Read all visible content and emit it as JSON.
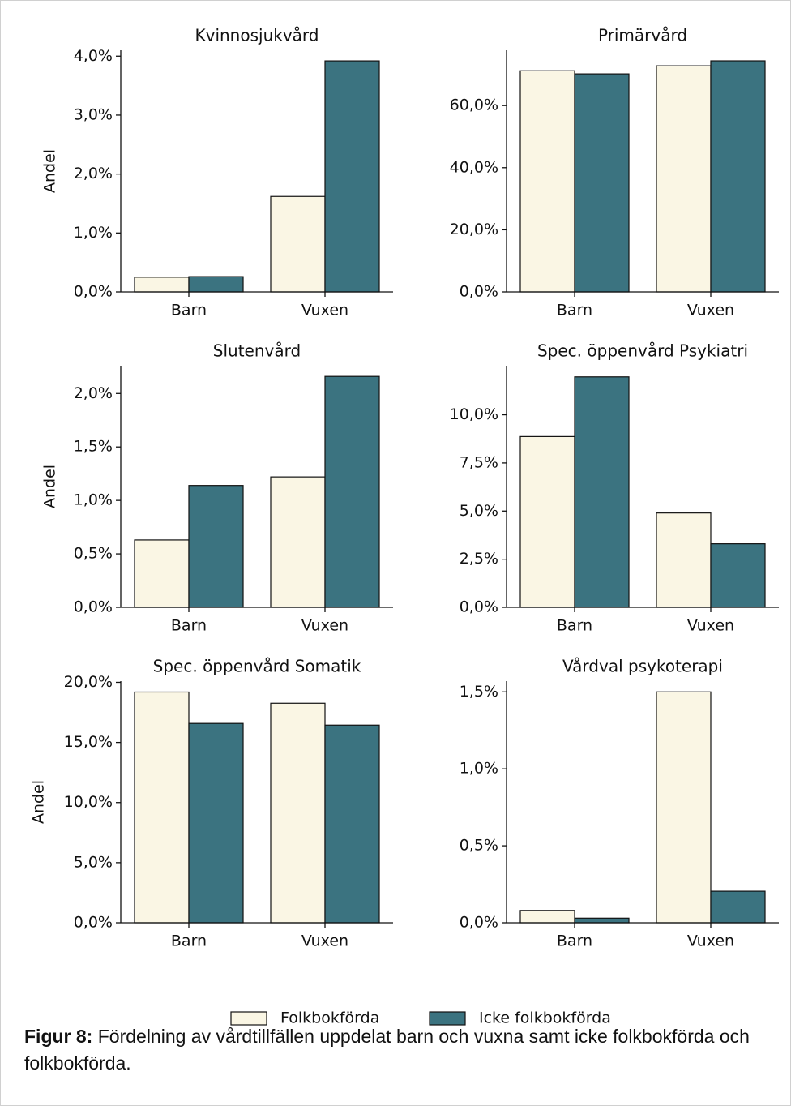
{
  "chart_data": [
    {
      "type": "bar",
      "title": "Kvinnosjukvård",
      "ylabel": "Andel",
      "categories": [
        "Barn",
        "Vuxen"
      ],
      "series": [
        {
          "name": "Folkbokförda",
          "color": "#faf6e4",
          "values": [
            0.25,
            1.62
          ]
        },
        {
          "name": "Icke folkbokförda",
          "color": "#3b7380",
          "values": [
            0.26,
            3.92
          ]
        }
      ],
      "ylim": [
        0,
        4.1
      ],
      "yticks": [
        {
          "value": 0,
          "label": "0,0%"
        },
        {
          "value": 1,
          "label": "1,0%"
        },
        {
          "value": 2,
          "label": "2,0%"
        },
        {
          "value": 3,
          "label": "3,0%"
        },
        {
          "value": 4,
          "label": "4,0%"
        }
      ]
    },
    {
      "type": "bar",
      "title": "Primärvård",
      "categories": [
        "Barn",
        "Vuxen"
      ],
      "series": [
        {
          "name": "Folkbokförda",
          "color": "#faf6e4",
          "values": [
            71.2,
            72.8
          ]
        },
        {
          "name": "Icke folkbokförda",
          "color": "#3b7380",
          "values": [
            70.2,
            74.4
          ]
        }
      ],
      "ylim": [
        0,
        77.8
      ],
      "yticks": [
        {
          "value": 0,
          "label": "0,0%"
        },
        {
          "value": 20,
          "label": "20,0%"
        },
        {
          "value": 40,
          "label": "40,0%"
        },
        {
          "value": 60,
          "label": "60,0%"
        }
      ]
    },
    {
      "type": "bar",
      "title": "Slutenvård",
      "ylabel": "Andel",
      "categories": [
        "Barn",
        "Vuxen"
      ],
      "series": [
        {
          "name": "Folkbokförda",
          "color": "#faf6e4",
          "values": [
            0.63,
            1.22
          ]
        },
        {
          "name": "Icke folkbokförda",
          "color": "#3b7380",
          "values": [
            1.14,
            2.16
          ]
        }
      ],
      "ylim": [
        0,
        2.26
      ],
      "yticks": [
        {
          "value": 0,
          "label": "0,0%"
        },
        {
          "value": 0.5,
          "label": "0,5%"
        },
        {
          "value": 1,
          "label": "1,0%"
        },
        {
          "value": 1.5,
          "label": "1,5%"
        },
        {
          "value": 2,
          "label": "2,0%"
        }
      ]
    },
    {
      "type": "bar",
      "title": "Spec. öppenvård Psykiatri",
      "categories": [
        "Barn",
        "Vuxen"
      ],
      "series": [
        {
          "name": "Folkbokförda",
          "color": "#faf6e4",
          "values": [
            8.87,
            4.9
          ]
        },
        {
          "name": "Icke folkbokförda",
          "color": "#3b7380",
          "values": [
            11.97,
            3.3
          ]
        }
      ],
      "ylim": [
        0,
        12.55
      ],
      "yticks": [
        {
          "value": 0,
          "label": "0,0%"
        },
        {
          "value": 2.5,
          "label": "2,5%"
        },
        {
          "value": 5,
          "label": "5,0%"
        },
        {
          "value": 7.5,
          "label": "7,5%"
        },
        {
          "value": 10,
          "label": "10,0%"
        }
      ]
    },
    {
      "type": "bar",
      "title": "Spec. öppenvård Somatik",
      "ylabel": "Andel",
      "categories": [
        "Barn",
        "Vuxen"
      ],
      "series": [
        {
          "name": "Folkbokförda",
          "color": "#faf6e4",
          "values": [
            19.19,
            18.26
          ]
        },
        {
          "name": "Icke folkbokförda",
          "color": "#3b7380",
          "values": [
            16.58,
            16.44
          ]
        }
      ],
      "ylim": [
        0,
        20.1
      ],
      "yticks": [
        {
          "value": 0,
          "label": "0,0%"
        },
        {
          "value": 5,
          "label": "5,0%"
        },
        {
          "value": 10,
          "label": "10,0%"
        },
        {
          "value": 15,
          "label": "15,0%"
        },
        {
          "value": 20,
          "label": "20,0%"
        }
      ]
    },
    {
      "type": "bar",
      "title": "Vårdval psykoterapi",
      "categories": [
        "Barn",
        "Vuxen"
      ],
      "series": [
        {
          "name": "Folkbokförda",
          "color": "#faf6e4",
          "values": [
            0.08,
            1.5
          ]
        },
        {
          "name": "Icke folkbokförda",
          "color": "#3b7380",
          "values": [
            0.03,
            0.205
          ]
        }
      ],
      "ylim": [
        0,
        1.57
      ],
      "yticks": [
        {
          "value": 0,
          "label": "0,0%"
        },
        {
          "value": 0.5,
          "label": "0,5%"
        },
        {
          "value": 1,
          "label": "1,0%"
        },
        {
          "value": 1.5,
          "label": "1,5%"
        }
      ]
    }
  ],
  "caption": {
    "label": "Figur 8:",
    "text": "Fördelning av vårdtillfällen uppdelat barn och vuxna samt icke folkbokförda och folkbokförda."
  }
}
